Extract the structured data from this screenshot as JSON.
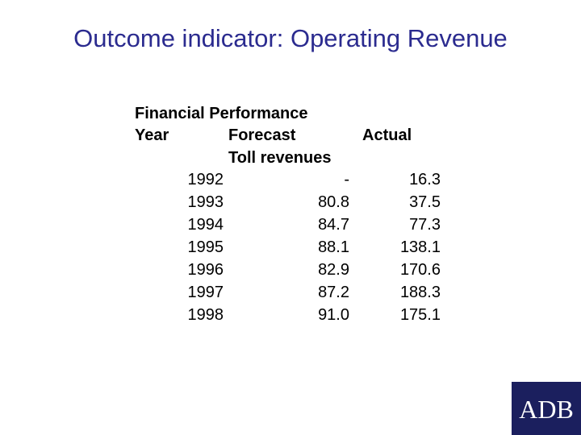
{
  "header": {
    "title": "Outcome indicator: Operating Revenue"
  },
  "table": {
    "caption": "Financial Performance",
    "columns": [
      "Year",
      "Forecast",
      "Actual"
    ],
    "subheader": "Toll revenues",
    "rows": [
      [
        "1992",
        "-",
        "16.3"
      ],
      [
        "1993",
        "80.8",
        "37.5"
      ],
      [
        "1994",
        "84.7",
        "77.3"
      ],
      [
        "1995",
        "88.1",
        "138.1"
      ],
      [
        "1996",
        "82.9",
        "170.6"
      ],
      [
        "1997",
        "87.2",
        "188.3"
      ],
      [
        "1998",
        "91.0",
        "175.1"
      ]
    ]
  },
  "logo": {
    "text": "ADB"
  }
}
